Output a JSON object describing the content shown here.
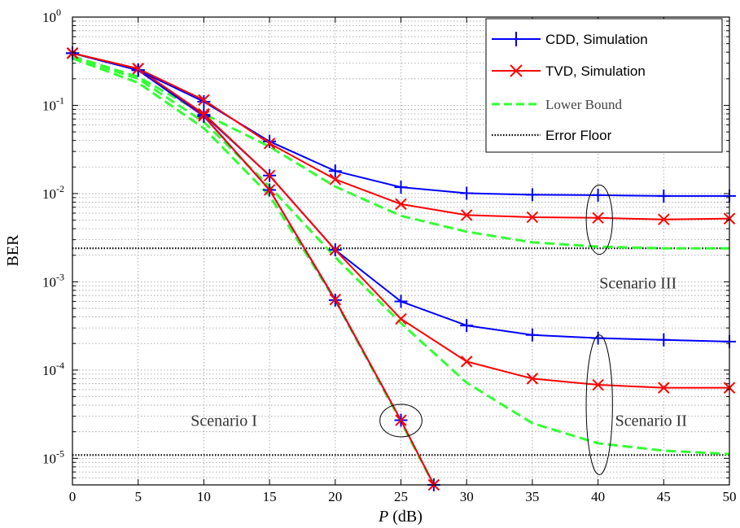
{
  "chart_data": {
    "type": "line",
    "title": "",
    "xlabel_var": "P",
    "xlabel_unit": "(dB)",
    "ylabel": "BER",
    "xlim": [
      0,
      50
    ],
    "ylim": [
      5e-06,
      1
    ],
    "yscale": "log",
    "grid": true,
    "xticks": [
      0,
      5,
      10,
      15,
      20,
      25,
      30,
      35,
      40,
      45,
      50
    ],
    "xtick_labels": [
      "0",
      "5",
      "10",
      "15",
      "20",
      "25",
      "30",
      "35",
      "40",
      "45",
      "50"
    ],
    "yticks": [
      {
        "value": 1,
        "base": "10",
        "exp": "0"
      },
      {
        "value": 0.1,
        "base": "10",
        "exp": "-1"
      },
      {
        "value": 0.01,
        "base": "10",
        "exp": "-2"
      },
      {
        "value": 0.001,
        "base": "10",
        "exp": "-3"
      },
      {
        "value": 0.0001,
        "base": "10",
        "exp": "-4"
      },
      {
        "value": 1e-05,
        "base": "10",
        "exp": "-5"
      }
    ],
    "legend_position": "top-right",
    "legend": [
      {
        "label": "CDD, Simulation",
        "color": "#0000ff",
        "style": "solid",
        "marker": "plus"
      },
      {
        "label": "TVD, Simulation",
        "color": "#ff0000",
        "style": "solid",
        "marker": "x"
      },
      {
        "label": "Lower Bound",
        "color": "#33ff33",
        "style": "dashed",
        "marker": "none"
      },
      {
        "label": "Error Floor",
        "color": "#000000",
        "style": "dotted",
        "marker": "none"
      }
    ],
    "series": [
      {
        "group": "lower-bound",
        "scenario": "I",
        "color": "#33ff33",
        "style": "dashed",
        "marker": "none",
        "x": [
          0,
          5,
          10,
          15,
          20,
          25,
          27.5
        ],
        "y": [
          0.34,
          0.18,
          0.055,
          0.0095,
          0.00062,
          2.6e-05,
          5e-06
        ]
      },
      {
        "group": "lower-bound",
        "scenario": "II",
        "color": "#33ff33",
        "style": "dashed",
        "marker": "none",
        "x": [
          0,
          5,
          10,
          15,
          20,
          25,
          30,
          35,
          40,
          45,
          50
        ],
        "y": [
          0.35,
          0.2,
          0.065,
          0.012,
          0.0019,
          0.00034,
          7.2e-05,
          2.5e-05,
          1.48e-05,
          1.22e-05,
          1.12e-05
        ]
      },
      {
        "group": "lower-bound",
        "scenario": "III",
        "color": "#33ff33",
        "style": "dashed",
        "marker": "none",
        "x": [
          0,
          5,
          10,
          15,
          20,
          25,
          30,
          35,
          40,
          45,
          50
        ],
        "y": [
          0.36,
          0.21,
          0.08,
          0.034,
          0.012,
          0.0056,
          0.0037,
          0.0028,
          0.0025,
          0.0024,
          0.0024
        ]
      },
      {
        "group": "cdd",
        "scenario": "I",
        "color": "#0000ff",
        "style": "solid",
        "marker": "plus",
        "x": [
          0,
          5,
          10,
          15,
          20,
          25,
          27.5
        ],
        "y": [
          0.39,
          0.25,
          0.075,
          0.011,
          0.00062,
          2.7e-05,
          5e-06
        ]
      },
      {
        "group": "tvd",
        "scenario": "I",
        "color": "#ff0000",
        "style": "solid",
        "marker": "x",
        "x": [
          0,
          5,
          10,
          15,
          20,
          25,
          27.5
        ],
        "y": [
          0.39,
          0.26,
          0.076,
          0.011,
          0.00063,
          2.7e-05,
          5e-06
        ]
      },
      {
        "group": "cdd",
        "scenario": "II",
        "color": "#0000ff",
        "style": "solid",
        "marker": "plus",
        "x": [
          0,
          5,
          10,
          15,
          20,
          25,
          30,
          35,
          40,
          45,
          50
        ],
        "y": [
          0.39,
          0.25,
          0.078,
          0.016,
          0.0023,
          0.0006,
          0.00032,
          0.00025,
          0.00023,
          0.00022,
          0.00021
        ]
      },
      {
        "group": "tvd",
        "scenario": "II",
        "color": "#ff0000",
        "style": "solid",
        "marker": "x",
        "x": [
          0,
          5,
          10,
          15,
          20,
          25,
          30,
          35,
          40,
          45,
          50
        ],
        "y": [
          0.39,
          0.26,
          0.08,
          0.016,
          0.0023,
          0.00038,
          0.000125,
          8e-05,
          6.8e-05,
          6.3e-05,
          6.3e-05
        ]
      },
      {
        "group": "cdd",
        "scenario": "III",
        "color": "#0000ff",
        "style": "solid",
        "marker": "plus",
        "x": [
          0,
          5,
          10,
          15,
          20,
          25,
          30,
          35,
          40,
          45,
          50
        ],
        "y": [
          0.39,
          0.25,
          0.11,
          0.039,
          0.018,
          0.0118,
          0.0101,
          0.0097,
          0.0096,
          0.0094,
          0.0094
        ]
      },
      {
        "group": "tvd",
        "scenario": "III",
        "color": "#ff0000",
        "style": "solid",
        "marker": "x",
        "x": [
          0,
          5,
          10,
          15,
          20,
          25,
          30,
          35,
          40,
          45,
          50
        ],
        "y": [
          0.39,
          0.26,
          0.115,
          0.037,
          0.0145,
          0.0076,
          0.0057,
          0.0054,
          0.0053,
          0.0051,
          0.0052
        ]
      },
      {
        "group": "error-floor",
        "scenario": "III",
        "color": "#000000",
        "style": "dotted",
        "marker": "none",
        "x": [
          0,
          50
        ],
        "y": [
          0.0024,
          0.0024
        ]
      },
      {
        "group": "error-floor",
        "scenario": "II",
        "color": "#000000",
        "style": "dotted",
        "marker": "none",
        "x": [
          0,
          50
        ],
        "y": [
          1.09e-05,
          1.09e-05
        ]
      }
    ],
    "annotations": [
      {
        "text": "Scenario I",
        "x": 9,
        "y": 2.7e-05,
        "ellipse": {
          "cx": 25,
          "cy": 2.7e-05,
          "rx_data": 1.6,
          "y_top": 4.1e-05,
          "y_bottom": 1.75e-05
        }
      },
      {
        "text": "Scenario II",
        "x": 41.3,
        "y": 2.7e-05,
        "ellipse": {
          "cx": 40.1,
          "cy": 4e-05,
          "rx_data": 1.0,
          "y_top": 0.00025,
          "y_bottom": 6.5e-06
        }
      },
      {
        "text": "Scenario III",
        "x": 40.1,
        "y": 0.00098,
        "ellipse": {
          "cx": 40.1,
          "cy": 0.005,
          "rx_data": 1.0,
          "y_top": 0.0125,
          "y_bottom": 0.00205
        }
      }
    ]
  }
}
